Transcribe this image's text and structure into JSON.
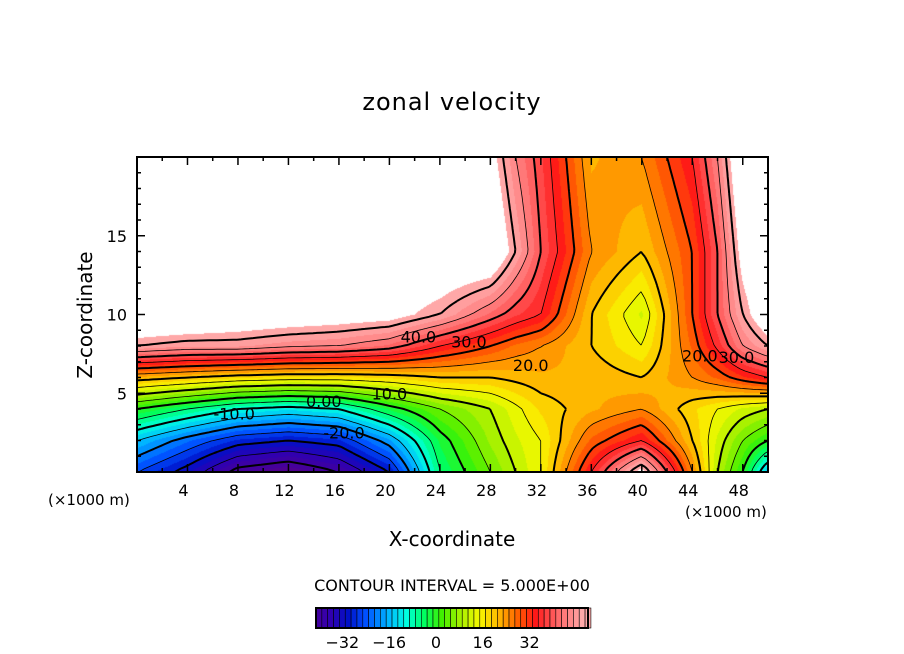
{
  "chart_data": {
    "type": "heatmap",
    "subtype": "filled-contour",
    "title": "zonal velocity",
    "xlabel": "X-coordinate",
    "ylabel": "Z-coordinate",
    "x_unit_note": "(×1000 m)",
    "xlim": [
      0,
      50
    ],
    "ylim": [
      0,
      20
    ],
    "xticks": [
      4,
      8,
      12,
      16,
      20,
      24,
      28,
      32,
      36,
      40,
      44,
      48
    ],
    "xtick_labels": [
      "4",
      "8",
      "12",
      "16",
      "20",
      "24",
      "28",
      "32",
      "36",
      "40",
      "44",
      "48"
    ],
    "yticks": [
      5,
      10,
      15
    ],
    "ytick_labels": [
      "5",
      "10",
      "15"
    ],
    "contour_interval_text": "CONTOUR INTERVAL = 5.000E+00",
    "contour_interval": 5,
    "grid_x": [
      0,
      4,
      8,
      12,
      16,
      20,
      24,
      28,
      30,
      32,
      36,
      40,
      44,
      46,
      48,
      50
    ],
    "grid_z": [
      0,
      2,
      4,
      6,
      8,
      10,
      14,
      20
    ],
    "values": [
      [
        -25,
        -32,
        -42,
        -45,
        -40,
        -30,
        -5,
        5,
        10,
        15,
        35,
        55,
        25,
        10,
        0,
        -15
      ],
      [
        -15,
        -22,
        -28,
        -30,
        -28,
        -18,
        -2,
        8,
        12,
        15,
        28,
        35,
        20,
        12,
        5,
        0
      ],
      [
        0,
        -5,
        -10,
        -12,
        -10,
        -2,
        5,
        10,
        14,
        18,
        22,
        25,
        18,
        15,
        12,
        10
      ],
      [
        22,
        20,
        18,
        17,
        17,
        18,
        20,
        20,
        21,
        22,
        22,
        20,
        25,
        28,
        32,
        35
      ],
      [
        50,
        48,
        48,
        46,
        45,
        42,
        35,
        30,
        27,
        25,
        20,
        15,
        28,
        36,
        45,
        50
      ],
      [
        60,
        60,
        58,
        57,
        56,
        55,
        50,
        42,
        38,
        35,
        20,
        12,
        30,
        40,
        50,
        58
      ],
      [
        60,
        60,
        60,
        60,
        60,
        60,
        60,
        60,
        50,
        40,
        25,
        20,
        30,
        40,
        55,
        60
      ],
      [
        60,
        60,
        60,
        60,
        60,
        60,
        60,
        55,
        45,
        38,
        22,
        25,
        35,
        45,
        60,
        60
      ]
    ],
    "contour_labels": [
      {
        "text": "40.0",
        "x": 22.3,
        "z": 8.6
      },
      {
        "text": "30.0",
        "x": 26.3,
        "z": 8.3
      },
      {
        "text": "20.0",
        "x": 31.2,
        "z": 6.8
      },
      {
        "text": "20.0",
        "x": 44.6,
        "z": 7.4
      },
      {
        "text": "30.0",
        "x": 47.5,
        "z": 7.3
      },
      {
        "text": "10.0",
        "x": 20.0,
        "z": 5.0
      },
      {
        "text": "0.00",
        "x": 14.8,
        "z": 4.5
      },
      {
        "text": "-10.0",
        "x": 7.7,
        "z": 3.7
      },
      {
        "text": "-20.0",
        "x": 16.4,
        "z": 2.5
      }
    ],
    "colorbar": {
      "min": -41,
      "max": 52,
      "tick_values": [
        -32,
        -16,
        0,
        16,
        32
      ],
      "tick_labels": [
        "−32",
        "−16",
        "0",
        "16",
        "32"
      ]
    },
    "colors": {
      "stops": [
        [
          -44,
          "#500090"
        ],
        [
          -36,
          "#3000b0"
        ],
        [
          -30,
          "#0010c8"
        ],
        [
          -24,
          "#0050ff"
        ],
        [
          -16,
          "#00b8ff"
        ],
        [
          -10,
          "#00ffe0"
        ],
        [
          -4,
          "#00ff60"
        ],
        [
          2,
          "#40f000"
        ],
        [
          8,
          "#a0f000"
        ],
        [
          15,
          "#f8f800"
        ],
        [
          22,
          "#ffb000"
        ],
        [
          28,
          "#ff6000"
        ],
        [
          34,
          "#ff1818"
        ],
        [
          42,
          "#ff6a6a"
        ],
        [
          50,
          "#ffa8a8"
        ]
      ]
    }
  }
}
